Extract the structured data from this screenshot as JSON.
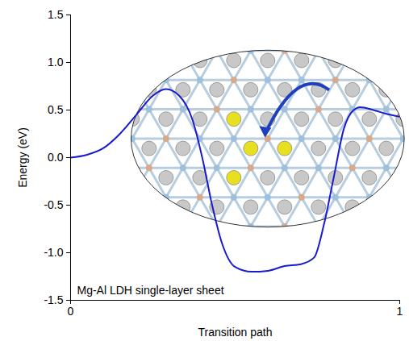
{
  "chart_data": {
    "type": "line",
    "x_label": "Transition path",
    "y_label": "Energy (eV)",
    "annotation": "Mg-Al LDH single-layer sheet",
    "color": "#1a1ad0",
    "x": [
      0,
      0.05,
      0.1,
      0.15,
      0.2,
      0.25,
      0.29,
      0.33,
      0.37,
      0.4,
      0.43,
      0.46,
      0.5,
      0.55,
      0.6,
      0.65,
      0.7,
      0.74,
      0.77,
      0.8,
      0.83,
      0.86,
      0.88,
      0.92,
      0.96,
      1.0
    ],
    "values": [
      0,
      0.03,
      0.1,
      0.25,
      0.45,
      0.65,
      0.72,
      0.65,
      0.4,
      0.0,
      -0.5,
      -0.9,
      -1.15,
      -1.2,
      -1.19,
      -1.14,
      -1.12,
      -1.05,
      -0.7,
      -0.2,
      0.3,
      0.5,
      0.53,
      0.5,
      0.46,
      0.43
    ],
    "xlim": [
      0,
      1
    ],
    "xticks": [
      0,
      1
    ],
    "ylim": [
      -1.5,
      1.5
    ],
    "yticks": [
      -1.5,
      {
        "value": -1.0,
        "label": "-1.0"
      },
      -0.5,
      {
        "value": 0.0,
        "label": "0.0"
      },
      0.5,
      {
        "value": 1.0,
        "label": "1.0"
      },
      1.5
    ]
  }
}
